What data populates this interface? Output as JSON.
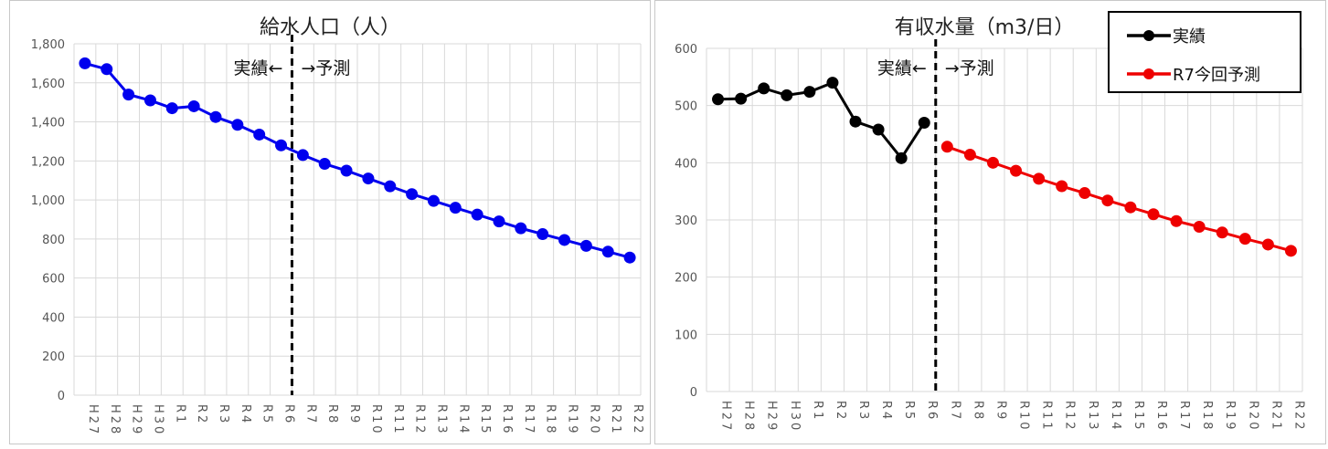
{
  "chart_data": [
    {
      "type": "line",
      "title": "給水人口（人）",
      "categories": [
        "H27",
        "H28",
        "H29",
        "H30",
        "R1",
        "R2",
        "R3",
        "R4",
        "R5",
        "R6",
        "R7",
        "R8",
        "R9",
        "R10",
        "R11",
        "R12",
        "R13",
        "R14",
        "R15",
        "R16",
        "R17",
        "R18",
        "R19",
        "R20",
        "R21",
        "R22"
      ],
      "ylim": [
        0,
        1800
      ],
      "yticks": [
        "0",
        "200",
        "400",
        "600",
        "800",
        "1,000",
        "1,200",
        "1,400",
        "1,600",
        "1,800"
      ],
      "grid": true,
      "divider_after": "R6",
      "annotation_left": "実績←",
      "annotation_right": "→予測",
      "series": [
        {
          "color": "#0000ee",
          "values": [
            1700,
            1670,
            1540,
            1510,
            1470,
            1480,
            1425,
            1385,
            1335,
            1280,
            1230,
            1185,
            1150,
            1110,
            1070,
            1030,
            995,
            960,
            925,
            890,
            855,
            825,
            795,
            765,
            735,
            705
          ]
        }
      ]
    },
    {
      "type": "line",
      "title": "有収水量（m3/日）",
      "categories": [
        "H27",
        "H28",
        "H29",
        "H30",
        "R1",
        "R2",
        "R3",
        "R4",
        "R5",
        "R6",
        "R7",
        "R8",
        "R9",
        "R10",
        "R11",
        "R12",
        "R13",
        "R14",
        "R15",
        "R16",
        "R17",
        "R18",
        "R19",
        "R20",
        "R21",
        "R22"
      ],
      "ylim": [
        0,
        600
      ],
      "yticks": [
        "0",
        "100",
        "200",
        "300",
        "400",
        "500",
        "600"
      ],
      "grid": true,
      "divider_after": "R6",
      "annotation_left": "実績←",
      "annotation_right": "→予測",
      "legend_position": "top-right",
      "series": [
        {
          "name": "実績",
          "color": "#000000",
          "values": [
            511,
            512,
            530,
            518,
            524,
            540,
            472,
            458,
            408,
            470,
            null,
            null,
            null,
            null,
            null,
            null,
            null,
            null,
            null,
            null,
            null,
            null,
            null,
            null,
            null,
            null
          ]
        },
        {
          "name": "R7今回予測",
          "color": "#ee0000",
          "values": [
            null,
            null,
            null,
            null,
            null,
            null,
            null,
            null,
            null,
            null,
            428,
            414,
            400,
            386,
            372,
            359,
            347,
            334,
            322,
            310,
            298,
            288,
            278,
            267,
            257,
            246
          ]
        }
      ]
    }
  ]
}
